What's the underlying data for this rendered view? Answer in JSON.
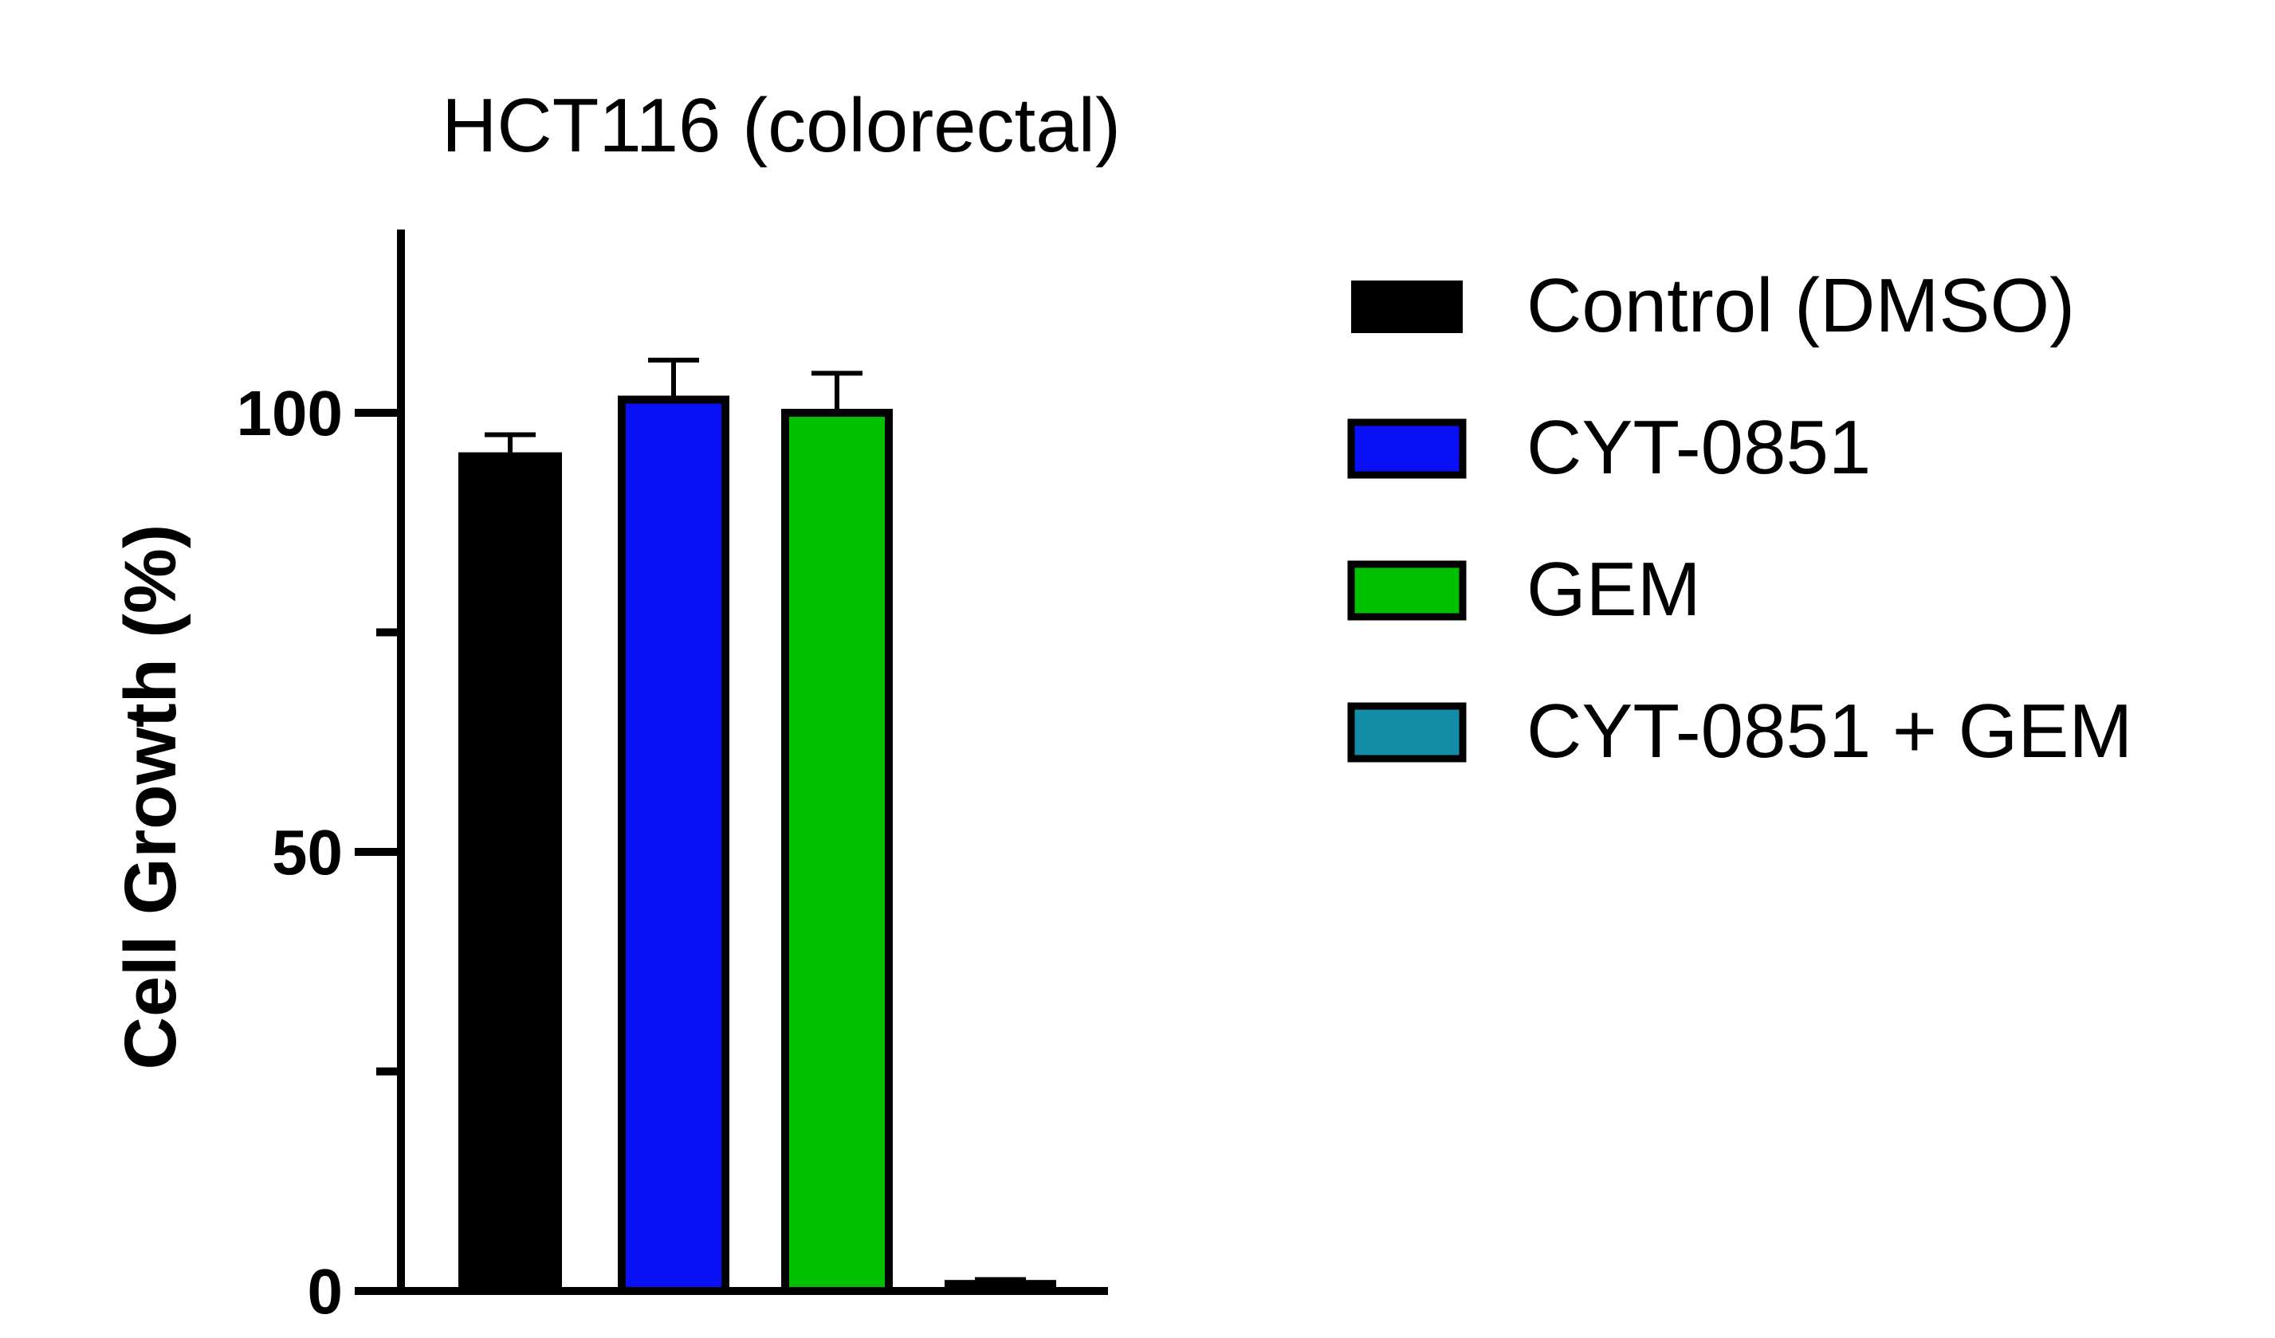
{
  "chart_data": {
    "type": "bar",
    "title": "HCT116 (colorectal)",
    "xlabel": "",
    "ylabel": "Cell Growth (%)",
    "ylim": [
      0,
      120
    ],
    "yticks_major": [
      0,
      50,
      100
    ],
    "yticks_minor": [
      25,
      75
    ],
    "grid": false,
    "legend_position": "right",
    "categories": [
      "Control (DMSO)",
      "CYT-0851",
      "GEM",
      "CYT-0851 + GEM"
    ],
    "values": [
      95.5,
      101.5,
      100,
      0.8
    ],
    "errors": [
      2,
      4.5,
      4.5,
      0.5
    ],
    "colors": [
      "#000000",
      "#0a10f5",
      "#00c000",
      "#138da6"
    ],
    "legend": [
      {
        "label": "Control (DMSO)",
        "color": "#000000"
      },
      {
        "label": "CYT-0851",
        "color": "#0a10f5"
      },
      {
        "label": "GEM",
        "color": "#00c000"
      },
      {
        "label": "CYT-0851 + GEM",
        "color": "#138da6"
      }
    ]
  }
}
